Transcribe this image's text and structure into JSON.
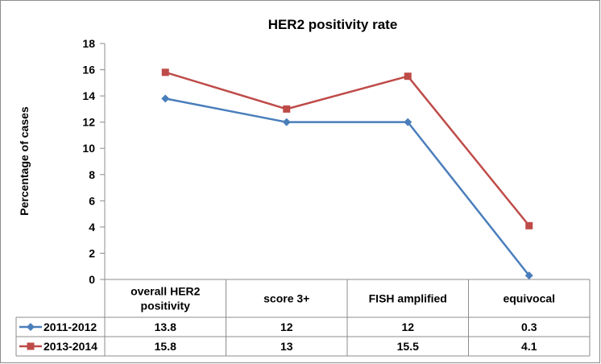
{
  "chart_data": {
    "type": "line",
    "title": "HER2 positivity rate",
    "xlabel": "",
    "ylabel": "Percentage of cases",
    "ylim": [
      0,
      18
    ],
    "yticks": [
      0,
      2,
      4,
      6,
      8,
      10,
      12,
      14,
      16,
      18
    ],
    "grid": false,
    "categories": [
      [
        "overall HER2",
        "positivity"
      ],
      [
        "score 3+"
      ],
      [
        "FISH amplified"
      ],
      [
        "equivocal"
      ]
    ],
    "series": [
      {
        "name": "2011-2012",
        "color": "#4a7ebb",
        "marker": "diamond",
        "values": [
          13.8,
          12,
          12,
          0.3
        ],
        "labels": [
          "13.8",
          "12",
          "12",
          "0.3"
        ]
      },
      {
        "name": "2013-2014",
        "color": "#be4b48",
        "marker": "square",
        "values": [
          15.8,
          13,
          15.5,
          4.1
        ],
        "labels": [
          "15.8",
          "13",
          "15.5",
          "4.1"
        ]
      }
    ],
    "data_table": true
  }
}
